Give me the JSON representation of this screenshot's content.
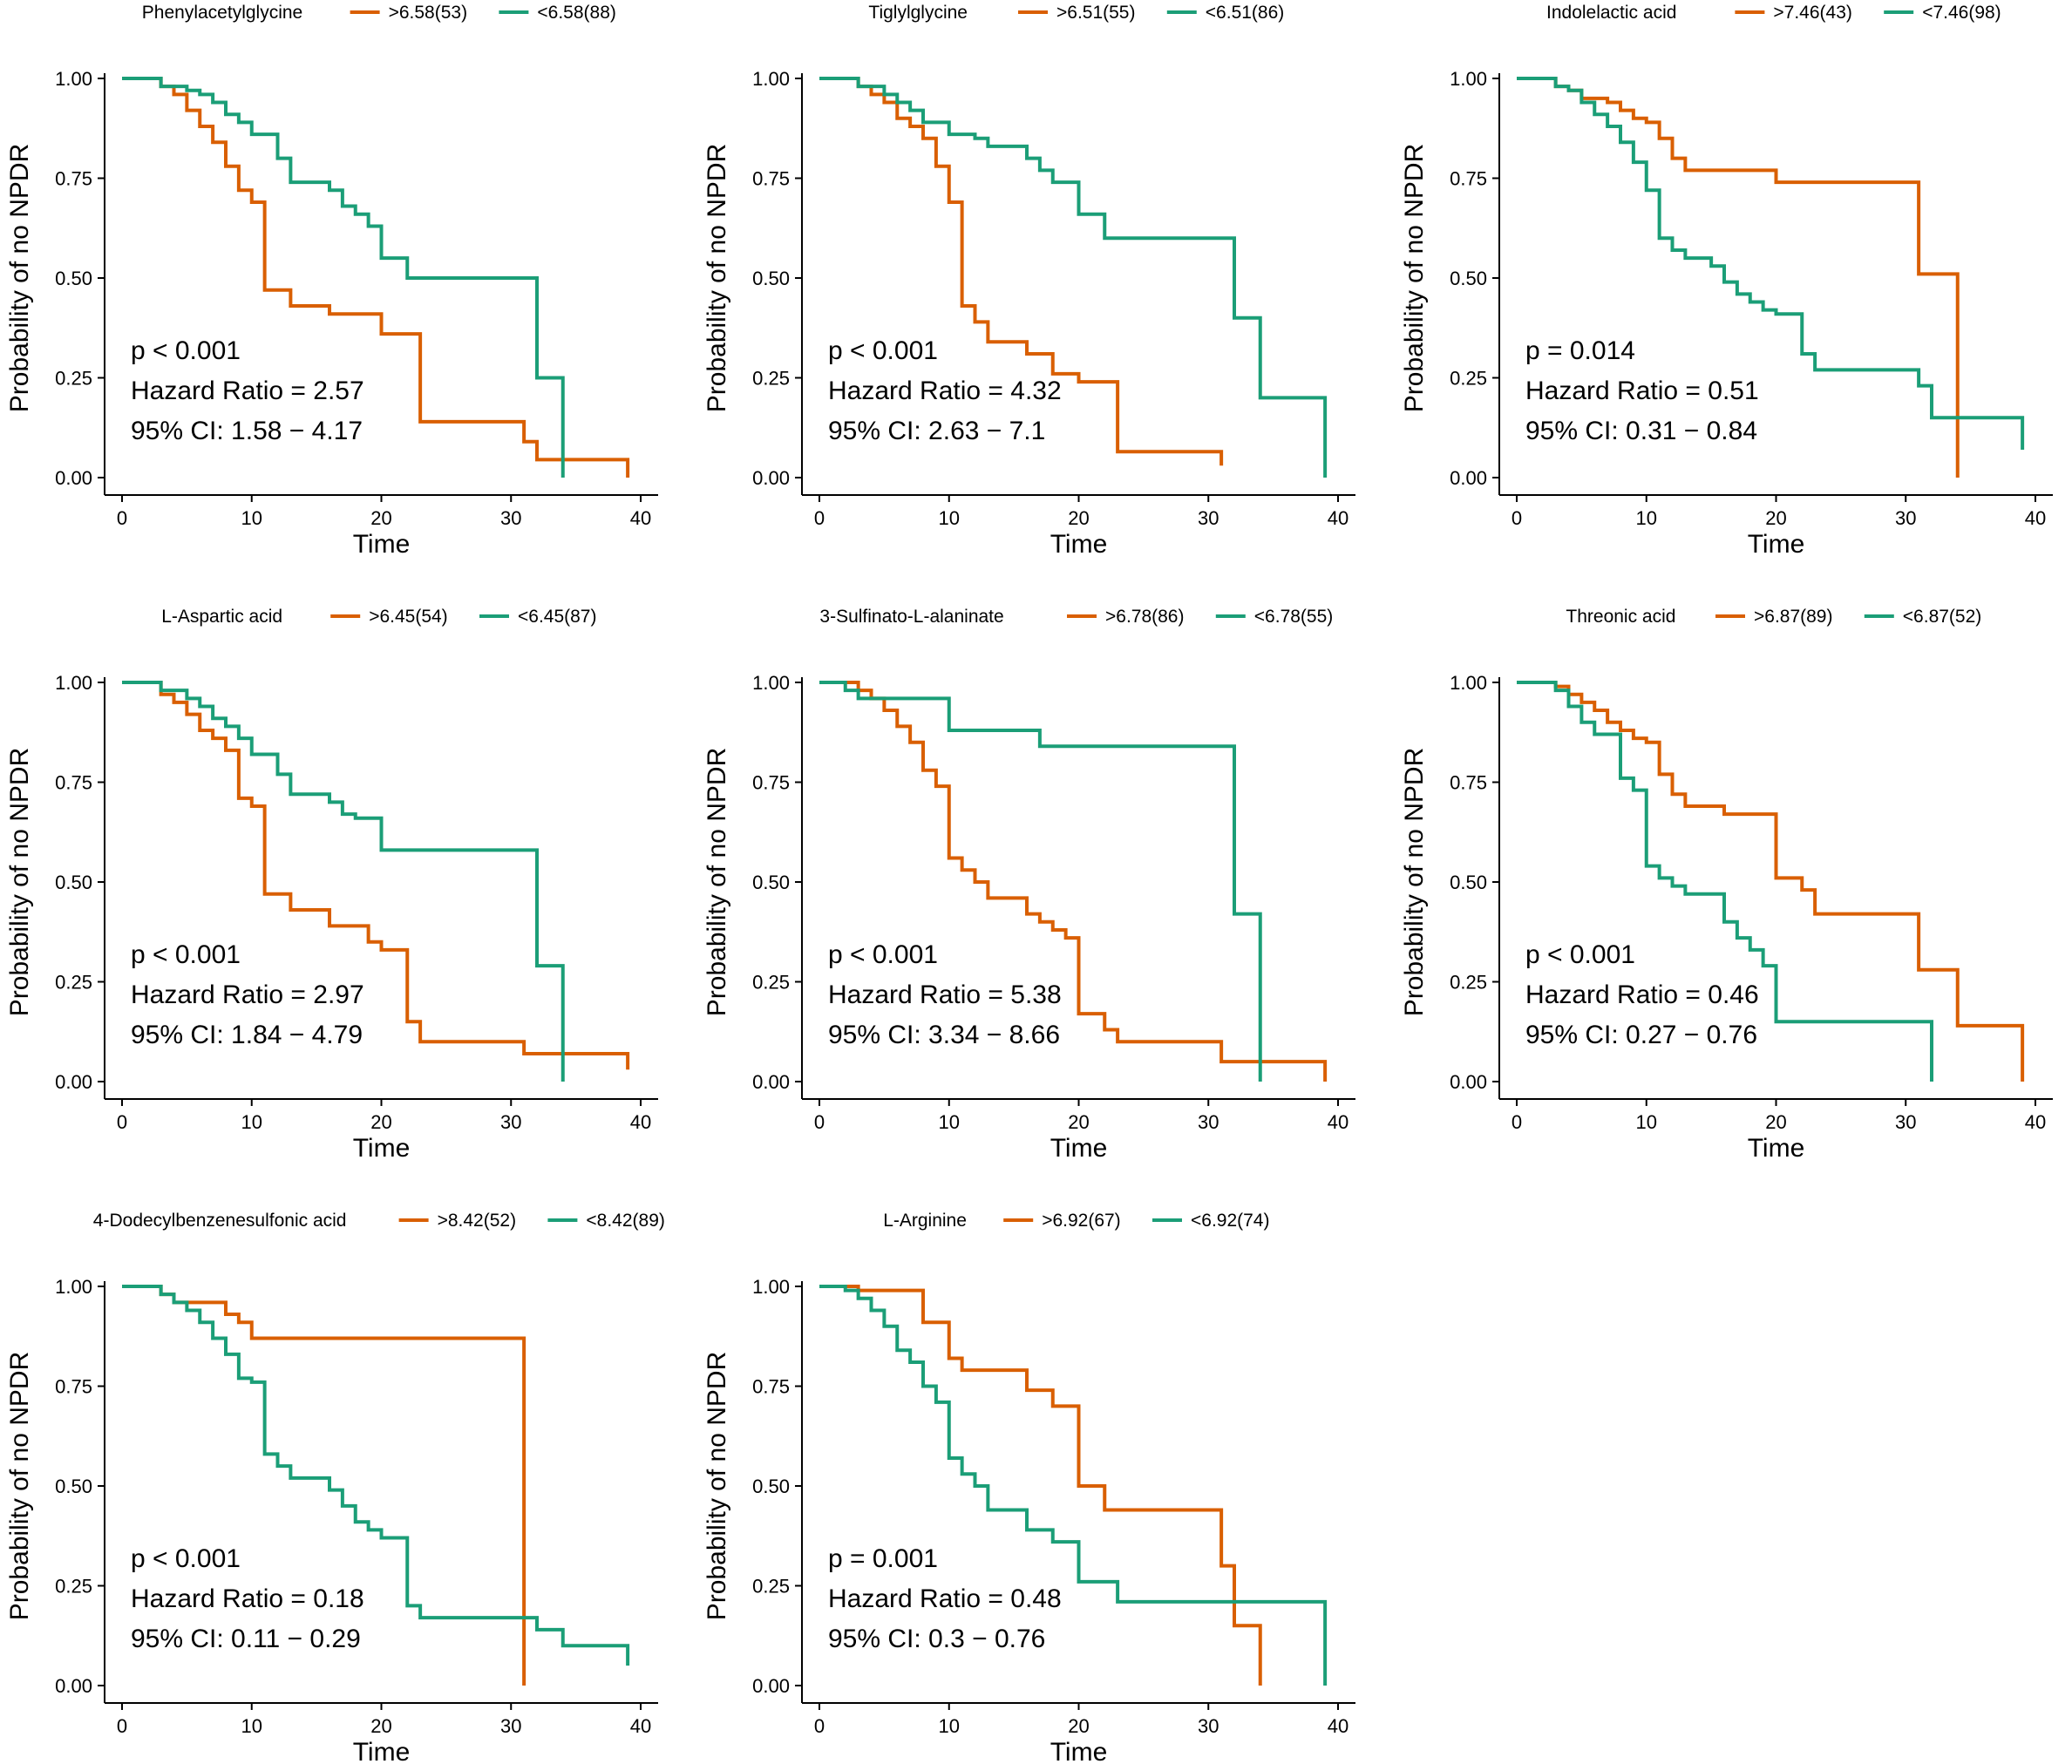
{
  "figure": {
    "colors": {
      "high": "#D95F02",
      "low": "#1B9E77"
    },
    "ylabel": "Probability of no NPDR",
    "xlabel": "Time"
  },
  "chart_data": [
    {
      "type": "line",
      "subtype": "kaplan-meier",
      "title": "Phenylacetylglycine",
      "xlabel": "Time",
      "ylabel": "Probability of no NPDR",
      "xlim": [
        0,
        40
      ],
      "ylim": [
        0,
        1
      ],
      "xticks": [
        "0",
        "10",
        "20",
        "30",
        "40"
      ],
      "yticks": [
        "0.00",
        "0.25",
        "0.50",
        "0.75",
        "1.00"
      ],
      "annotations": [
        "p < 0.001",
        "Hazard Ratio = 2.57",
        "95% CI: 1.58 − 4.17"
      ],
      "series": [
        {
          "name": ">6.58(53)",
          "group": "high",
          "times": [
            0,
            3,
            4,
            5,
            6,
            7,
            8,
            9,
            10,
            11,
            13,
            16,
            20,
            23,
            31,
            32,
            39
          ],
          "surv": [
            1.0,
            0.98,
            0.96,
            0.92,
            0.88,
            0.84,
            0.78,
            0.72,
            0.69,
            0.47,
            0.43,
            0.41,
            0.36,
            0.14,
            0.09,
            0.045,
            0.0
          ]
        },
        {
          "name": "<6.58(88)",
          "group": "low",
          "times": [
            0,
            3,
            5,
            6,
            7,
            8,
            9,
            10,
            12,
            13,
            16,
            17,
            18,
            19,
            20,
            22,
            32,
            34
          ],
          "surv": [
            1.0,
            0.98,
            0.97,
            0.96,
            0.94,
            0.91,
            0.89,
            0.86,
            0.8,
            0.74,
            0.72,
            0.68,
            0.66,
            0.63,
            0.55,
            0.5,
            0.25,
            0.0
          ]
        }
      ]
    },
    {
      "type": "line",
      "subtype": "kaplan-meier",
      "title": "Tiglylglycine",
      "xlabel": "Time",
      "ylabel": "Probability of no NPDR",
      "xlim": [
        0,
        40
      ],
      "ylim": [
        0,
        1
      ],
      "xticks": [
        "0",
        "10",
        "20",
        "30",
        "40"
      ],
      "yticks": [
        "0.00",
        "0.25",
        "0.50",
        "0.75",
        "1.00"
      ],
      "annotations": [
        "p < 0.001",
        "Hazard Ratio = 4.32",
        "95% CI: 2.63 − 7.1"
      ],
      "series": [
        {
          "name": ">6.51(55)",
          "group": "high",
          "times": [
            0,
            3,
            4,
            5,
            6,
            7,
            8,
            9,
            10,
            11,
            12,
            13,
            16,
            18,
            20,
            23,
            31
          ],
          "surv": [
            1.0,
            0.98,
            0.96,
            0.94,
            0.9,
            0.88,
            0.85,
            0.78,
            0.69,
            0.43,
            0.39,
            0.34,
            0.31,
            0.26,
            0.24,
            0.065,
            0.03
          ]
        },
        {
          "name": "<6.51(86)",
          "group": "low",
          "times": [
            0,
            3,
            5,
            6,
            7,
            8,
            10,
            12,
            13,
            16,
            17,
            18,
            20,
            22,
            32,
            34,
            39
          ],
          "surv": [
            1.0,
            0.98,
            0.96,
            0.94,
            0.92,
            0.89,
            0.86,
            0.85,
            0.83,
            0.8,
            0.77,
            0.74,
            0.66,
            0.6,
            0.4,
            0.2,
            0.0
          ]
        }
      ]
    },
    {
      "type": "line",
      "subtype": "kaplan-meier",
      "title": "Indolelactic acid",
      "xlabel": "Time",
      "ylabel": "Probability of no NPDR",
      "xlim": [
        0,
        40
      ],
      "ylim": [
        0,
        1
      ],
      "xticks": [
        "0",
        "10",
        "20",
        "30",
        "40"
      ],
      "yticks": [
        "0.00",
        "0.25",
        "0.50",
        "0.75",
        "1.00"
      ],
      "annotations": [
        "p = 0.014",
        "Hazard Ratio = 0.51",
        "95% CI: 0.31 − 0.84"
      ],
      "series": [
        {
          "name": ">7.46(43)",
          "group": "high",
          "times": [
            0,
            3,
            4,
            5,
            7,
            8,
            9,
            10,
            11,
            12,
            13,
            20,
            31,
            34
          ],
          "surv": [
            1.0,
            0.98,
            0.97,
            0.95,
            0.94,
            0.92,
            0.9,
            0.89,
            0.85,
            0.8,
            0.77,
            0.74,
            0.51,
            0.0
          ]
        },
        {
          "name": "<7.46(98)",
          "group": "low",
          "times": [
            0,
            3,
            4,
            5,
            6,
            7,
            8,
            9,
            10,
            11,
            12,
            13,
            15,
            16,
            17,
            18,
            19,
            20,
            22,
            23,
            31,
            32,
            39
          ],
          "surv": [
            1.0,
            0.98,
            0.97,
            0.94,
            0.91,
            0.88,
            0.84,
            0.79,
            0.72,
            0.6,
            0.57,
            0.55,
            0.53,
            0.49,
            0.46,
            0.44,
            0.42,
            0.41,
            0.31,
            0.27,
            0.23,
            0.15,
            0.07
          ]
        }
      ]
    },
    {
      "type": "line",
      "subtype": "kaplan-meier",
      "title": "L-Aspartic acid",
      "xlabel": "Time",
      "ylabel": "Probability of no NPDR",
      "xlim": [
        0,
        40
      ],
      "ylim": [
        0,
        1
      ],
      "xticks": [
        "0",
        "10",
        "20",
        "30",
        "40"
      ],
      "yticks": [
        "0.00",
        "0.25",
        "0.50",
        "0.75",
        "1.00"
      ],
      "annotations": [
        "p < 0.001",
        "Hazard Ratio = 2.97",
        "95% CI: 1.84 − 4.79"
      ],
      "series": [
        {
          "name": ">6.45(54)",
          "group": "high",
          "times": [
            0,
            3,
            4,
            5,
            6,
            7,
            8,
            9,
            10,
            11,
            13,
            16,
            19,
            20,
            22,
            23,
            31,
            39
          ],
          "surv": [
            1.0,
            0.97,
            0.95,
            0.92,
            0.88,
            0.86,
            0.83,
            0.71,
            0.69,
            0.47,
            0.43,
            0.39,
            0.35,
            0.33,
            0.15,
            0.1,
            0.07,
            0.03
          ]
        },
        {
          "name": "<6.45(87)",
          "group": "low",
          "times": [
            0,
            3,
            5,
            6,
            7,
            8,
            9,
            10,
            12,
            13,
            16,
            17,
            18,
            20,
            32,
            34
          ],
          "surv": [
            1.0,
            0.98,
            0.96,
            0.94,
            0.91,
            0.89,
            0.86,
            0.82,
            0.77,
            0.72,
            0.7,
            0.67,
            0.66,
            0.58,
            0.29,
            0.0
          ]
        }
      ]
    },
    {
      "type": "line",
      "subtype": "kaplan-meier",
      "title": "3-Sulfinato-L-alaninate",
      "xlabel": "Time",
      "ylabel": "Probability of no NPDR",
      "xlim": [
        0,
        40
      ],
      "ylim": [
        0,
        1
      ],
      "xticks": [
        "0",
        "10",
        "20",
        "30",
        "40"
      ],
      "yticks": [
        "0.00",
        "0.25",
        "0.50",
        "0.75",
        "1.00"
      ],
      "annotations": [
        "p < 0.001",
        "Hazard Ratio = 5.38",
        "95% CI: 3.34 − 8.66"
      ],
      "series": [
        {
          "name": ">6.78(86)",
          "group": "high",
          "times": [
            0,
            3,
            4,
            5,
            6,
            7,
            8,
            9,
            10,
            11,
            12,
            13,
            16,
            17,
            18,
            19,
            20,
            22,
            23,
            31,
            39
          ],
          "surv": [
            1.0,
            0.98,
            0.96,
            0.93,
            0.89,
            0.85,
            0.78,
            0.74,
            0.56,
            0.53,
            0.5,
            0.46,
            0.42,
            0.4,
            0.38,
            0.36,
            0.17,
            0.13,
            0.1,
            0.05,
            0.0
          ]
        },
        {
          "name": "<6.78(55)",
          "group": "low",
          "times": [
            0,
            2,
            3,
            5,
            10,
            17,
            32,
            34
          ],
          "surv": [
            1.0,
            0.98,
            0.96,
            0.96,
            0.88,
            0.84,
            0.42,
            0.0
          ]
        }
      ]
    },
    {
      "type": "line",
      "subtype": "kaplan-meier",
      "title": "Threonic acid",
      "xlabel": "Time",
      "ylabel": "Probability of no NPDR",
      "xlim": [
        0,
        40
      ],
      "ylim": [
        0,
        1
      ],
      "xticks": [
        "0",
        "10",
        "20",
        "30",
        "40"
      ],
      "yticks": [
        "0.00",
        "0.25",
        "0.50",
        "0.75",
        "1.00"
      ],
      "annotations": [
        "p < 0.001",
        "Hazard Ratio = 0.46",
        "95% CI: 0.27 − 0.76"
      ],
      "series": [
        {
          "name": ">6.87(89)",
          "group": "high",
          "times": [
            0,
            3,
            4,
            5,
            6,
            7,
            8,
            9,
            10,
            11,
            12,
            13,
            16,
            20,
            22,
            23,
            31,
            34,
            39
          ],
          "surv": [
            1.0,
            0.99,
            0.97,
            0.95,
            0.93,
            0.9,
            0.88,
            0.86,
            0.85,
            0.77,
            0.72,
            0.69,
            0.67,
            0.51,
            0.48,
            0.42,
            0.28,
            0.14,
            0.0
          ]
        },
        {
          "name": "<6.87(52)",
          "group": "low",
          "times": [
            0,
            3,
            4,
            5,
            6,
            8,
            9,
            10,
            11,
            12,
            13,
            16,
            17,
            18,
            19,
            20,
            32
          ],
          "surv": [
            1.0,
            0.98,
            0.94,
            0.9,
            0.87,
            0.76,
            0.73,
            0.54,
            0.51,
            0.49,
            0.47,
            0.4,
            0.36,
            0.33,
            0.29,
            0.15,
            0.0
          ]
        }
      ]
    },
    {
      "type": "line",
      "subtype": "kaplan-meier",
      "title": "4-Dodecylbenzenesulfonic acid",
      "xlabel": "Time",
      "ylabel": "Probability of no NPDR",
      "xlim": [
        0,
        40
      ],
      "ylim": [
        0,
        1
      ],
      "xticks": [
        "0",
        "10",
        "20",
        "30",
        "40"
      ],
      "yticks": [
        "0.00",
        "0.25",
        "0.50",
        "0.75",
        "1.00"
      ],
      "annotations": [
        "p < 0.001",
        "Hazard Ratio = 0.18",
        "95% CI: 0.11 − 0.29"
      ],
      "series": [
        {
          "name": ">8.42(52)",
          "group": "high",
          "times": [
            0,
            3,
            4,
            5,
            8,
            9,
            10,
            31
          ],
          "surv": [
            1.0,
            0.98,
            0.96,
            0.96,
            0.93,
            0.91,
            0.87,
            0.0
          ]
        },
        {
          "name": "<8.42(89)",
          "group": "low",
          "times": [
            0,
            3,
            4,
            5,
            6,
            7,
            8,
            9,
            10,
            11,
            12,
            13,
            16,
            17,
            18,
            19,
            20,
            22,
            23,
            32,
            34,
            39
          ],
          "surv": [
            1.0,
            0.98,
            0.96,
            0.94,
            0.91,
            0.87,
            0.83,
            0.77,
            0.76,
            0.58,
            0.55,
            0.52,
            0.49,
            0.45,
            0.41,
            0.39,
            0.37,
            0.2,
            0.17,
            0.14,
            0.1,
            0.05
          ]
        }
      ]
    },
    {
      "type": "line",
      "subtype": "kaplan-meier",
      "title": "L-Arginine",
      "xlabel": "Time",
      "ylabel": "Probability of no NPDR",
      "xlim": [
        0,
        40
      ],
      "ylim": [
        0,
        1
      ],
      "xticks": [
        "0",
        "10",
        "20",
        "30",
        "40"
      ],
      "yticks": [
        "0.00",
        "0.25",
        "0.50",
        "0.75",
        "1.00"
      ],
      "annotations": [
        "p = 0.001",
        "Hazard Ratio = 0.48",
        "95% CI: 0.3 − 0.76"
      ],
      "series": [
        {
          "name": ">6.92(67)",
          "group": "high",
          "times": [
            0,
            3,
            8,
            10,
            11,
            16,
            18,
            20,
            22,
            31,
            32,
            34
          ],
          "surv": [
            1.0,
            0.99,
            0.91,
            0.82,
            0.79,
            0.74,
            0.7,
            0.5,
            0.44,
            0.3,
            0.15,
            0.0
          ]
        },
        {
          "name": "<6.92(74)",
          "group": "low",
          "times": [
            0,
            2,
            3,
            4,
            5,
            6,
            7,
            8,
            9,
            10,
            11,
            12,
            13,
            16,
            18,
            20,
            23,
            39
          ],
          "surv": [
            1.0,
            0.99,
            0.97,
            0.94,
            0.9,
            0.84,
            0.81,
            0.75,
            0.71,
            0.57,
            0.53,
            0.5,
            0.44,
            0.39,
            0.36,
            0.26,
            0.21,
            0.0
          ]
        }
      ]
    }
  ]
}
